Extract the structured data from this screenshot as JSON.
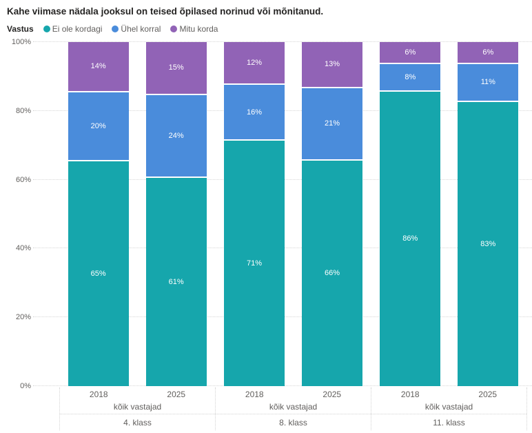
{
  "title": "Kahe viimase nädala jooksul on teised õpilased norinud või mõnitanud.",
  "legend": {
    "title": "Vastus"
  },
  "colors": {
    "background": "#ffffff",
    "title_text": "#252423",
    "axis_text": "#605e5c",
    "gridline": "#d6d6d6",
    "bar_label_text": "#ffffff"
  },
  "chart_data": {
    "type": "bar",
    "subtype": "stacked-100-percent",
    "title": "Kahe viimase nädala jooksul on teised õpilased norinud või mõnitanud.",
    "legend_title": "Vastus",
    "legend_position": "top",
    "grid": true,
    "ylim": [
      0,
      100
    ],
    "y_ticks": [
      {
        "label": "100%",
        "value": 100
      },
      {
        "label": "80%",
        "value": 80
      },
      {
        "label": "60%",
        "value": 60
      },
      {
        "label": "40%",
        "value": 40
      },
      {
        "label": "20%",
        "value": 20
      },
      {
        "label": "0%",
        "value": 0
      }
    ],
    "series": [
      {
        "name": "Ei ole kordagi",
        "color": "#16a6ac"
      },
      {
        "name": "Ühel korral",
        "color": "#4a8cdb"
      },
      {
        "name": "Mitu korda",
        "color": "#9163b6"
      }
    ],
    "groups": [
      {
        "label": "4. klass",
        "subgroup_label": "kõik vastajad",
        "bars": [
          {
            "category": "2018",
            "values": [
              65,
              20,
              14
            ],
            "labels": [
              "65%",
              "20%",
              "14%"
            ]
          },
          {
            "category": "2025",
            "values": [
              61,
              24,
              15
            ],
            "labels": [
              "61%",
              "24%",
              "15%"
            ]
          }
        ]
      },
      {
        "label": "8. klass",
        "subgroup_label": "kõik vastajad",
        "bars": [
          {
            "category": "2018",
            "values": [
              71,
              16,
              12
            ],
            "labels": [
              "71%",
              "16%",
              "12%"
            ]
          },
          {
            "category": "2025",
            "values": [
              66,
              21,
              13
            ],
            "labels": [
              "66%",
              "21%",
              "13%"
            ]
          }
        ]
      },
      {
        "label": "11. klass",
        "subgroup_label": "kõik vastajad",
        "bars": [
          {
            "category": "2018",
            "values": [
              86,
              8,
              6
            ],
            "labels": [
              "86%",
              "8%",
              "6%"
            ]
          },
          {
            "category": "2025",
            "values": [
              83,
              11,
              6
            ],
            "labels": [
              "83%",
              "11%",
              "6%"
            ]
          }
        ]
      }
    ]
  }
}
